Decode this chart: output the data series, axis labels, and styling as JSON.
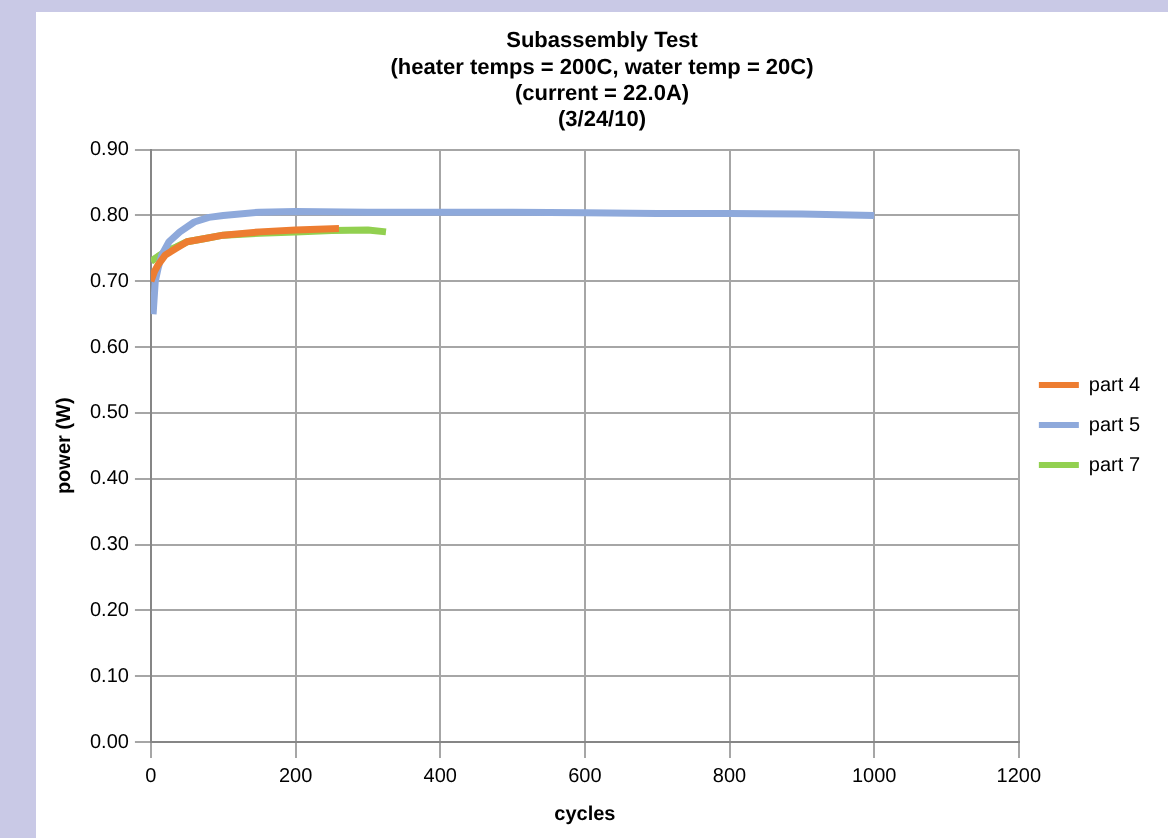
{
  "chart_data": {
    "type": "line",
    "title": [
      "Subassembly Test",
      "(heater temps = 200C, water temp = 20C)",
      "(current = 22.0A)",
      "(3/24/10)"
    ],
    "xlabel": "cycles",
    "ylabel": "power (W)",
    "xlim": [
      0,
      1200
    ],
    "xticks": [
      0,
      200,
      400,
      600,
      800,
      1000,
      1200
    ],
    "ylim": [
      0,
      0.9
    ],
    "yticks": [
      {
        "value": 0,
        "label": "0.00"
      },
      {
        "value": 0.1,
        "label": "0.10"
      },
      {
        "value": 0.2,
        "label": "0.20"
      },
      {
        "value": 0.3,
        "label": "0.30"
      },
      {
        "value": 0.4,
        "label": "0.40"
      },
      {
        "value": 0.5,
        "label": "0.50"
      },
      {
        "value": 0.6,
        "label": "0.60"
      },
      {
        "value": 0.7,
        "label": "0.70"
      },
      {
        "value": 0.8,
        "label": "0.80"
      },
      {
        "value": 0.9,
        "label": "0.90"
      }
    ],
    "grid": true,
    "legend": "right",
    "marker": "none",
    "series": [
      {
        "name": "part 4",
        "color": "#ed7d31",
        "x": [
          0,
          5,
          10,
          20,
          35,
          50,
          75,
          100,
          150,
          200,
          260
        ],
        "values": [
          0.7,
          0.715,
          0.725,
          0.74,
          0.75,
          0.76,
          0.765,
          0.77,
          0.775,
          0.778,
          0.78
        ]
      },
      {
        "name": "part 5",
        "color": "#8ea9db",
        "x": [
          3,
          6,
          10,
          15,
          25,
          40,
          60,
          80,
          100,
          150,
          200,
          300,
          400,
          500,
          600,
          700,
          800,
          900,
          1000
        ],
        "values": [
          0.65,
          0.7,
          0.72,
          0.74,
          0.76,
          0.775,
          0.79,
          0.797,
          0.8,
          0.805,
          0.806,
          0.805,
          0.805,
          0.805,
          0.804,
          0.803,
          0.803,
          0.802,
          0.8
        ]
      },
      {
        "name": "part 7",
        "color": "#92d050",
        "x": [
          0,
          10,
          20,
          35,
          50,
          75,
          100,
          150,
          200,
          250,
          300,
          325
        ],
        "values": [
          0.73,
          0.738,
          0.745,
          0.752,
          0.76,
          0.765,
          0.77,
          0.773,
          0.775,
          0.777,
          0.778,
          0.775
        ]
      }
    ]
  }
}
